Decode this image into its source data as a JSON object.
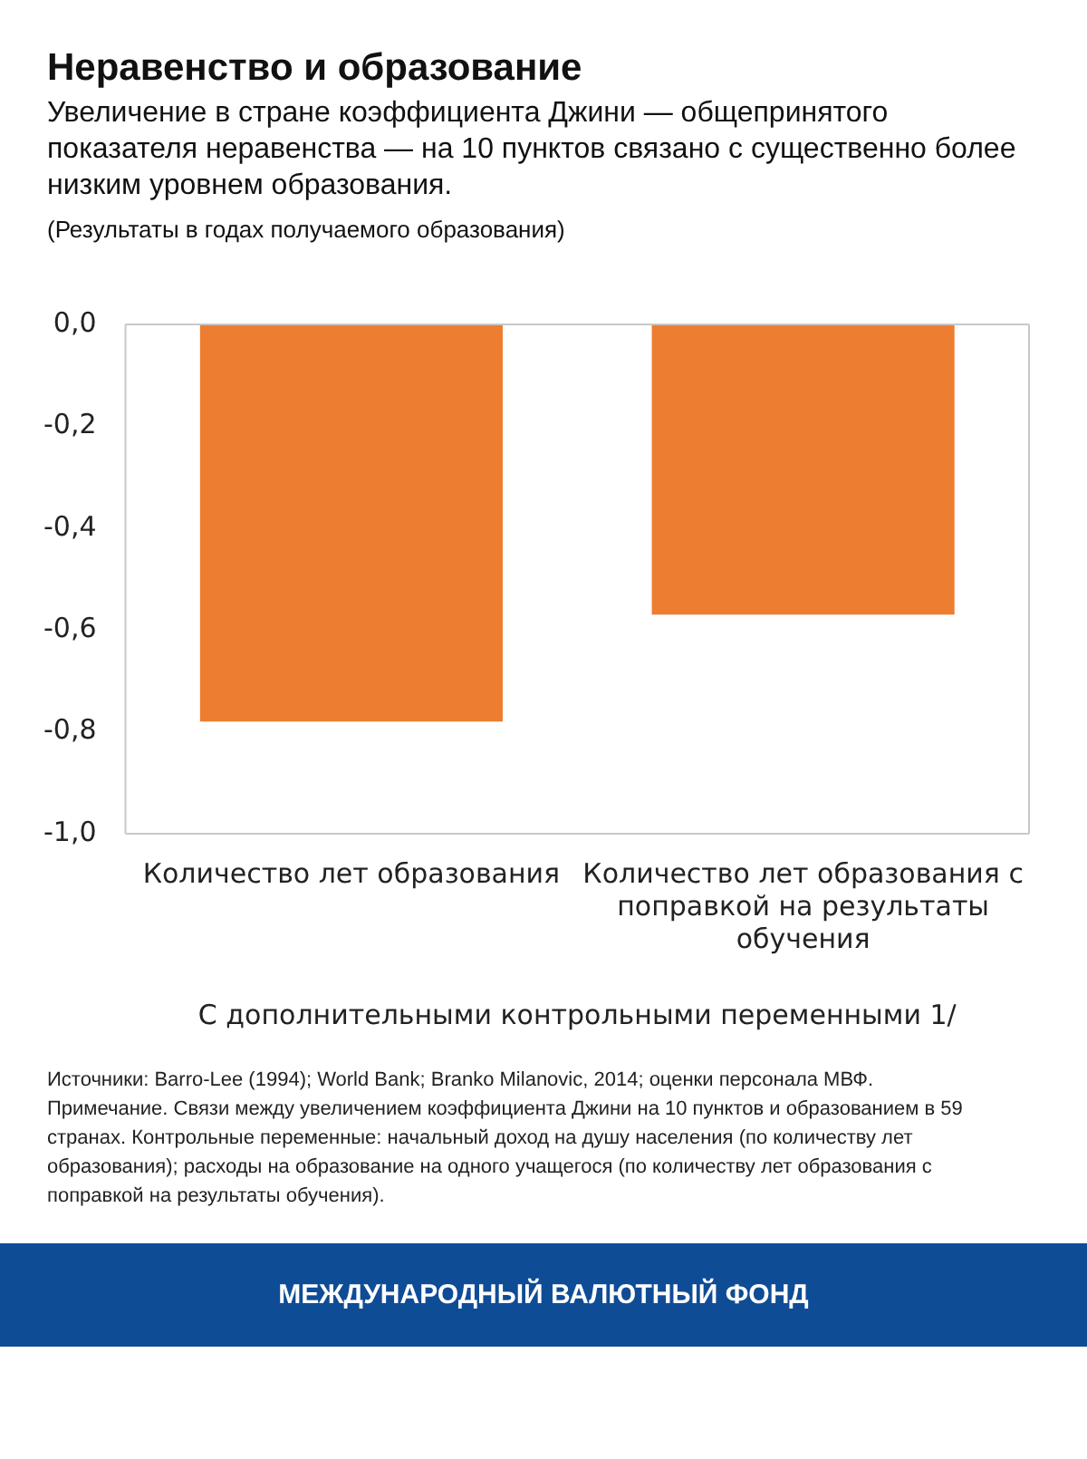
{
  "chart_data": {
    "type": "bar",
    "title": "Неравенство и образование",
    "subtitle": "Увеличение в стране коэффициента Джини — общепринятого показателя неравенства  —  на 10 пунктов связано с существенно более низким уровнем образования.",
    "ylabel": "(Результаты в годах получаемого образования)",
    "xlabel": "С дополнительными контрольными переменными 1/",
    "categories": [
      "Количество лет образования",
      "Количество лет образования с поправкой на результаты обучения"
    ],
    "values": [
      -0.78,
      -0.57
    ],
    "color": "#ed7d31",
    "ylim": [
      -1,
      0
    ],
    "yticks": [
      {
        "value": 0,
        "label": "0,0"
      },
      {
        "value": -0.2,
        "label": "-0,2"
      },
      {
        "value": -0.4,
        "label": "-0,4"
      },
      {
        "value": -0.6,
        "label": "-0,6"
      },
      {
        "value": -0.8,
        "label": "-0,8"
      },
      {
        "value": -1,
        "label": "-1,0"
      }
    ],
    "grid": false,
    "annotations": [
      "Источники: Barro-Lee (1994); World Bank; Branko Milanovic, 2014; оценки персонала МВФ.",
      "Примечание. Связи между увеличением коэффициента Джини на 10 пунктов и образованием в 59 странах. Контрольные переменные: начальный доход на душу населения (по количеству лет образования); расходы на образование на одного учащегося (по количеству лет образования с поправкой на результаты обучения).",
      "МЕЖДУНАРОДНЫЙ ВАЛЮТНЫЙ ФОНД"
    ]
  }
}
